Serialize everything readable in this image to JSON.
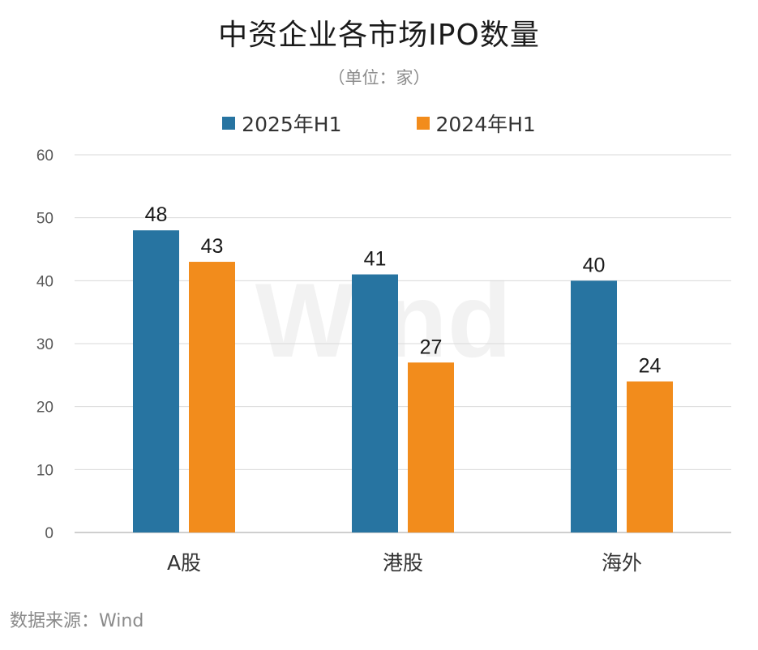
{
  "title": "中资企业各市场IPO数量",
  "subtitle": "（单位：家）",
  "source": "数据来源：Wind",
  "watermark": "Wind",
  "colors": {
    "series1": "#2774A1",
    "series2": "#F28C1C",
    "grid": "#d9d9d9",
    "axis": "#bfbfbf"
  },
  "chart_data": {
    "type": "bar",
    "categories": [
      "A股",
      "港股",
      "海外"
    ],
    "series": [
      {
        "name": "2025年H1",
        "values": [
          48,
          41,
          40
        ]
      },
      {
        "name": "2024年H1",
        "values": [
          43,
          27,
          24
        ]
      }
    ],
    "ylim": [
      0,
      60
    ],
    "yticks": [
      0,
      10,
      20,
      30,
      40,
      50,
      60
    ],
    "grid": true,
    "legend": "top"
  }
}
